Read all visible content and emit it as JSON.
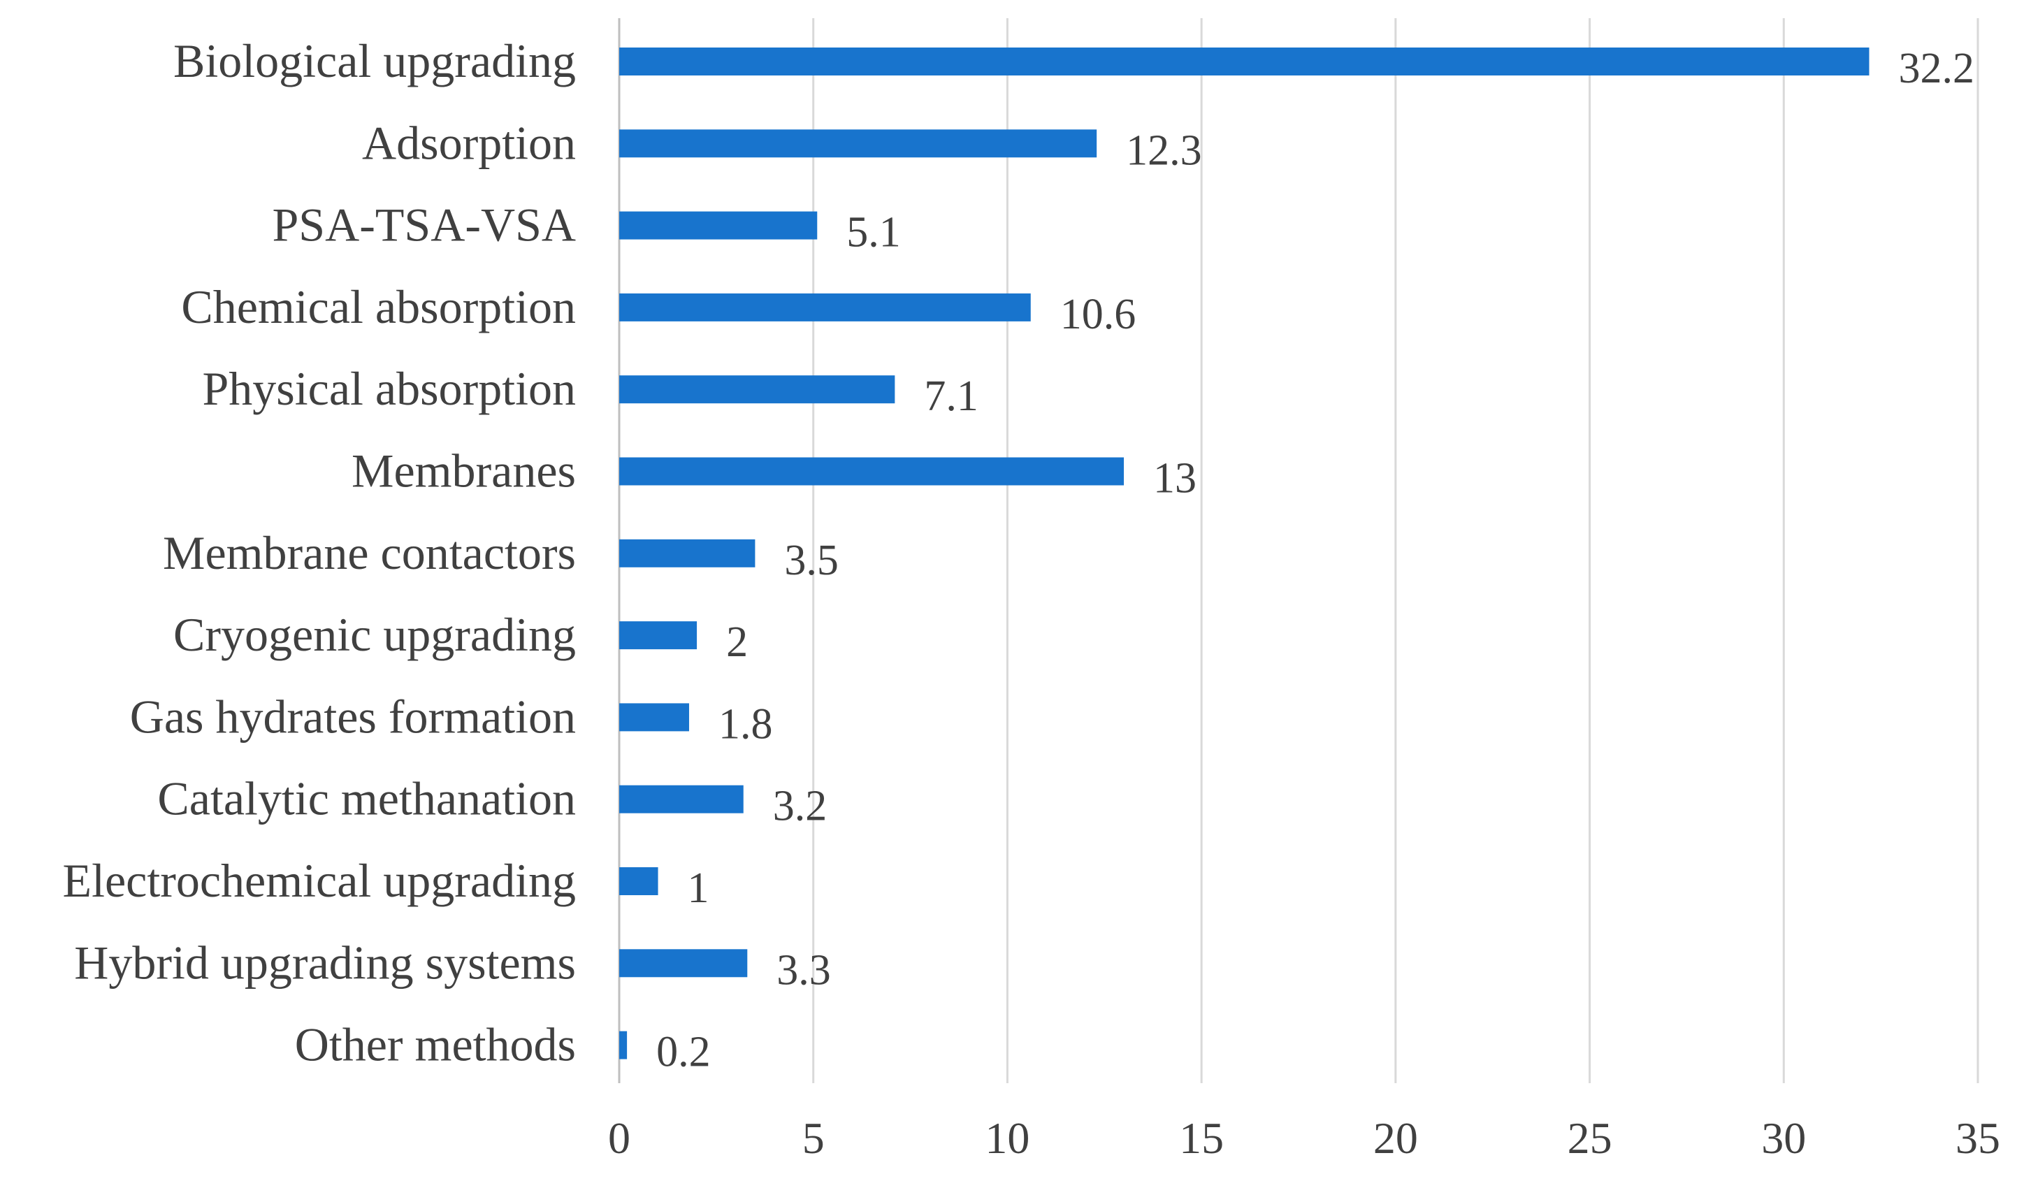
{
  "chart_data": {
    "type": "bar",
    "orientation": "horizontal",
    "title": "",
    "xlabel": "",
    "ylabel": "",
    "categories": [
      "Biological upgrading",
      "Adsorption",
      "PSA-TSA-VSA",
      "Chemical absorption",
      "Physical absorption",
      "Membranes",
      "Membrane contactors",
      "Cryogenic upgrading",
      "Gas hydrates formation",
      "Catalytic methanation",
      "Electrochemical upgrading",
      "Hybrid upgrading systems",
      "Other methods"
    ],
    "values": [
      32.2,
      12.3,
      5.1,
      10.6,
      7.1,
      13,
      3.5,
      2,
      1.8,
      3.2,
      1,
      3.3,
      0.2
    ],
    "data_labels": [
      "32.2",
      "12.3",
      "5.1",
      "10.6",
      "7.1",
      "13",
      "3.5",
      "2",
      "1.8",
      "3.2",
      "1",
      "3.3",
      "0.2"
    ],
    "xlim": [
      0,
      35
    ],
    "xticks": [
      0,
      5,
      10,
      15,
      20,
      25,
      30,
      35
    ],
    "grid": true,
    "legend": "none",
    "bar_color": "#1874cd"
  }
}
